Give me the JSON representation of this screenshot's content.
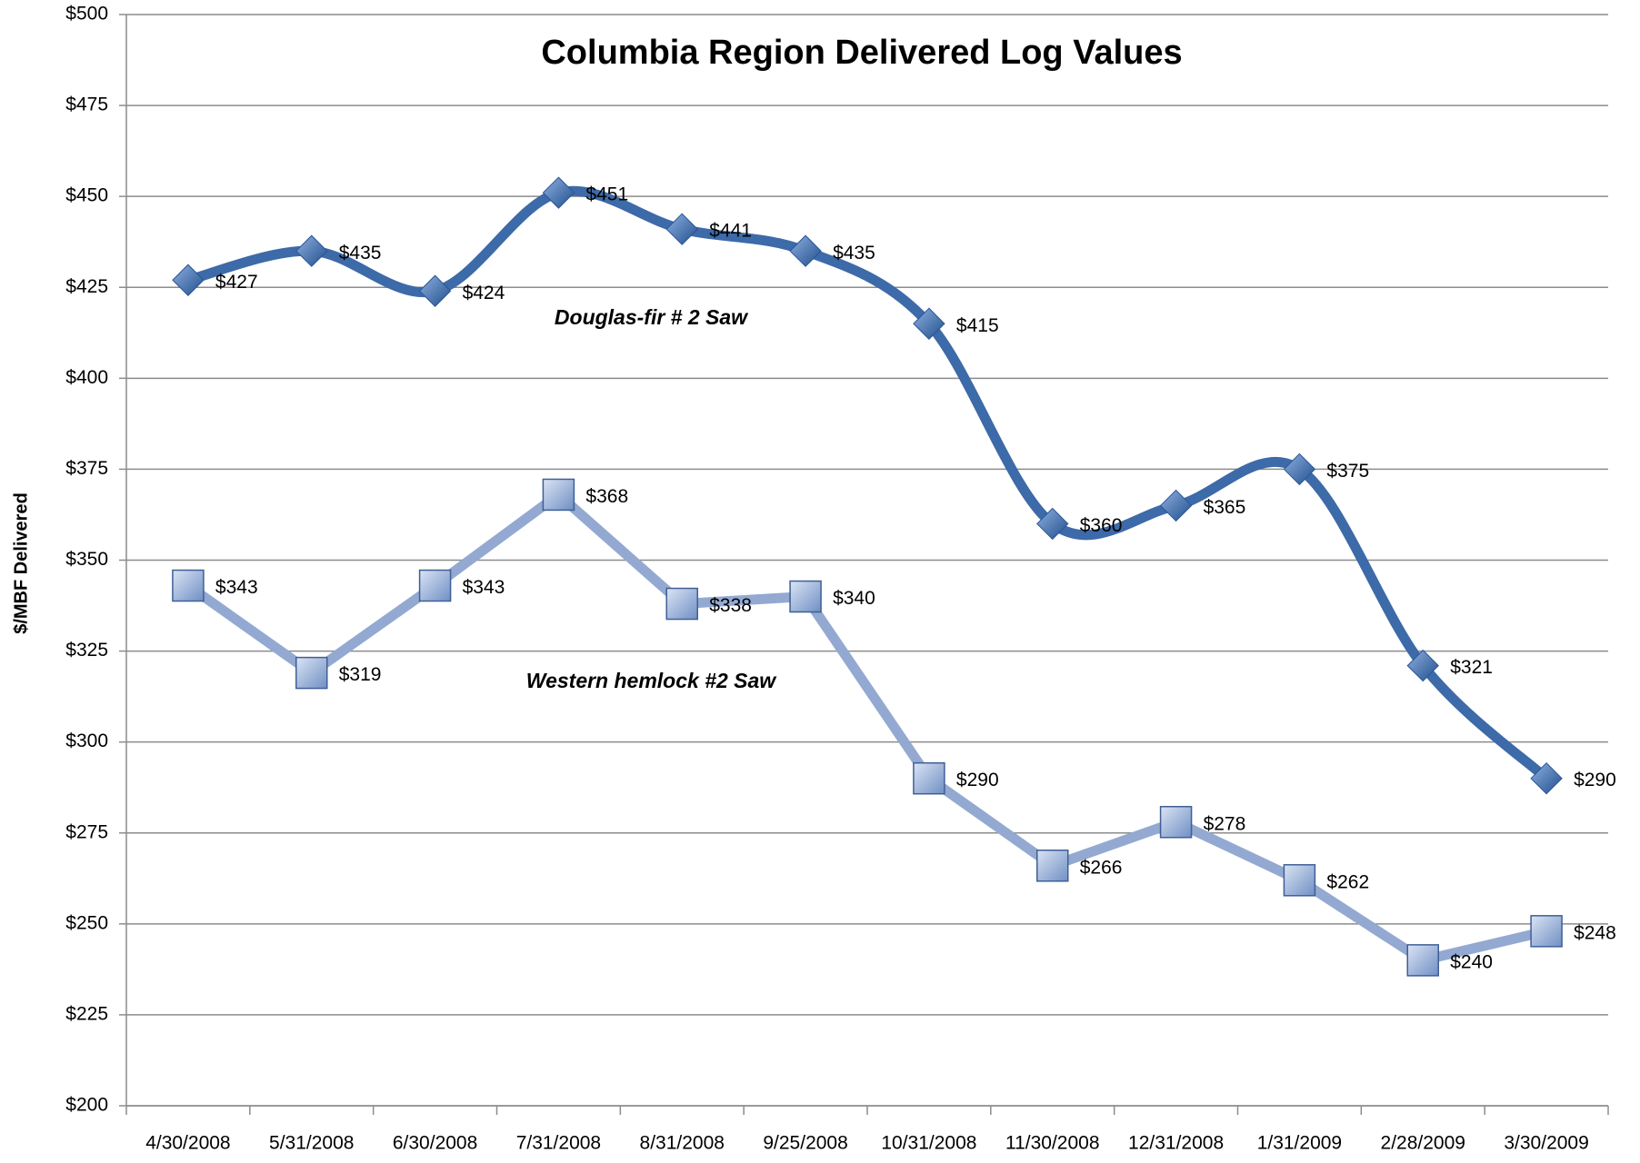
{
  "chart_data": {
    "type": "line",
    "title": "Columbia Region Delivered Log Values",
    "y_label": "$/MBF Delivered",
    "categories": [
      "4/30/2008",
      "5/31/2008",
      "6/30/2008",
      "7/31/2008",
      "8/31/2008",
      "9/25/2008",
      "10/31/2008",
      "11/30/2008",
      "12/31/2008",
      "1/31/2009",
      "2/28/2009",
      "3/30/2009"
    ],
    "series": [
      {
        "name": "Douglas-fir # 2 Saw",
        "color": "#3d6aa8",
        "marker": "diamond",
        "smooth": true,
        "values": [
          427,
          435,
          424,
          451,
          441,
          435,
          415,
          360,
          365,
          375,
          321,
          290
        ],
        "value_labels": [
          "$427",
          "$435",
          "$424",
          "$451",
          "$441",
          "$435",
          "$415",
          "$360",
          "$365",
          "$375",
          "$321",
          "$290"
        ]
      },
      {
        "name": "Western hemlock #2 Saw",
        "color": "#93a9d1",
        "marker": "square",
        "smooth": false,
        "values": [
          343,
          319,
          343,
          368,
          338,
          340,
          290,
          266,
          278,
          262,
          240,
          248
        ],
        "value_labels": [
          "$343",
          "$319",
          "$343",
          "$368",
          "$338",
          "$340",
          "$290",
          "$266",
          "$278",
          "$262",
          "$240",
          "$248"
        ]
      }
    ],
    "ylim": [
      200,
      500
    ],
    "yticks": [
      {
        "value": 200,
        "label": "$200"
      },
      {
        "value": 225,
        "label": "$225"
      },
      {
        "value": 250,
        "label": "$250"
      },
      {
        "value": 275,
        "label": "$275"
      },
      {
        "value": 300,
        "label": "$300"
      },
      {
        "value": 325,
        "label": "$325"
      },
      {
        "value": 350,
        "label": "$350"
      },
      {
        "value": 375,
        "label": "$375"
      },
      {
        "value": 400,
        "label": "$400"
      },
      {
        "value": 425,
        "label": "$425"
      },
      {
        "value": 450,
        "label": "$450"
      },
      {
        "value": 475,
        "label": "$475"
      },
      {
        "value": 500,
        "label": "$500"
      }
    ],
    "grid": true
  }
}
